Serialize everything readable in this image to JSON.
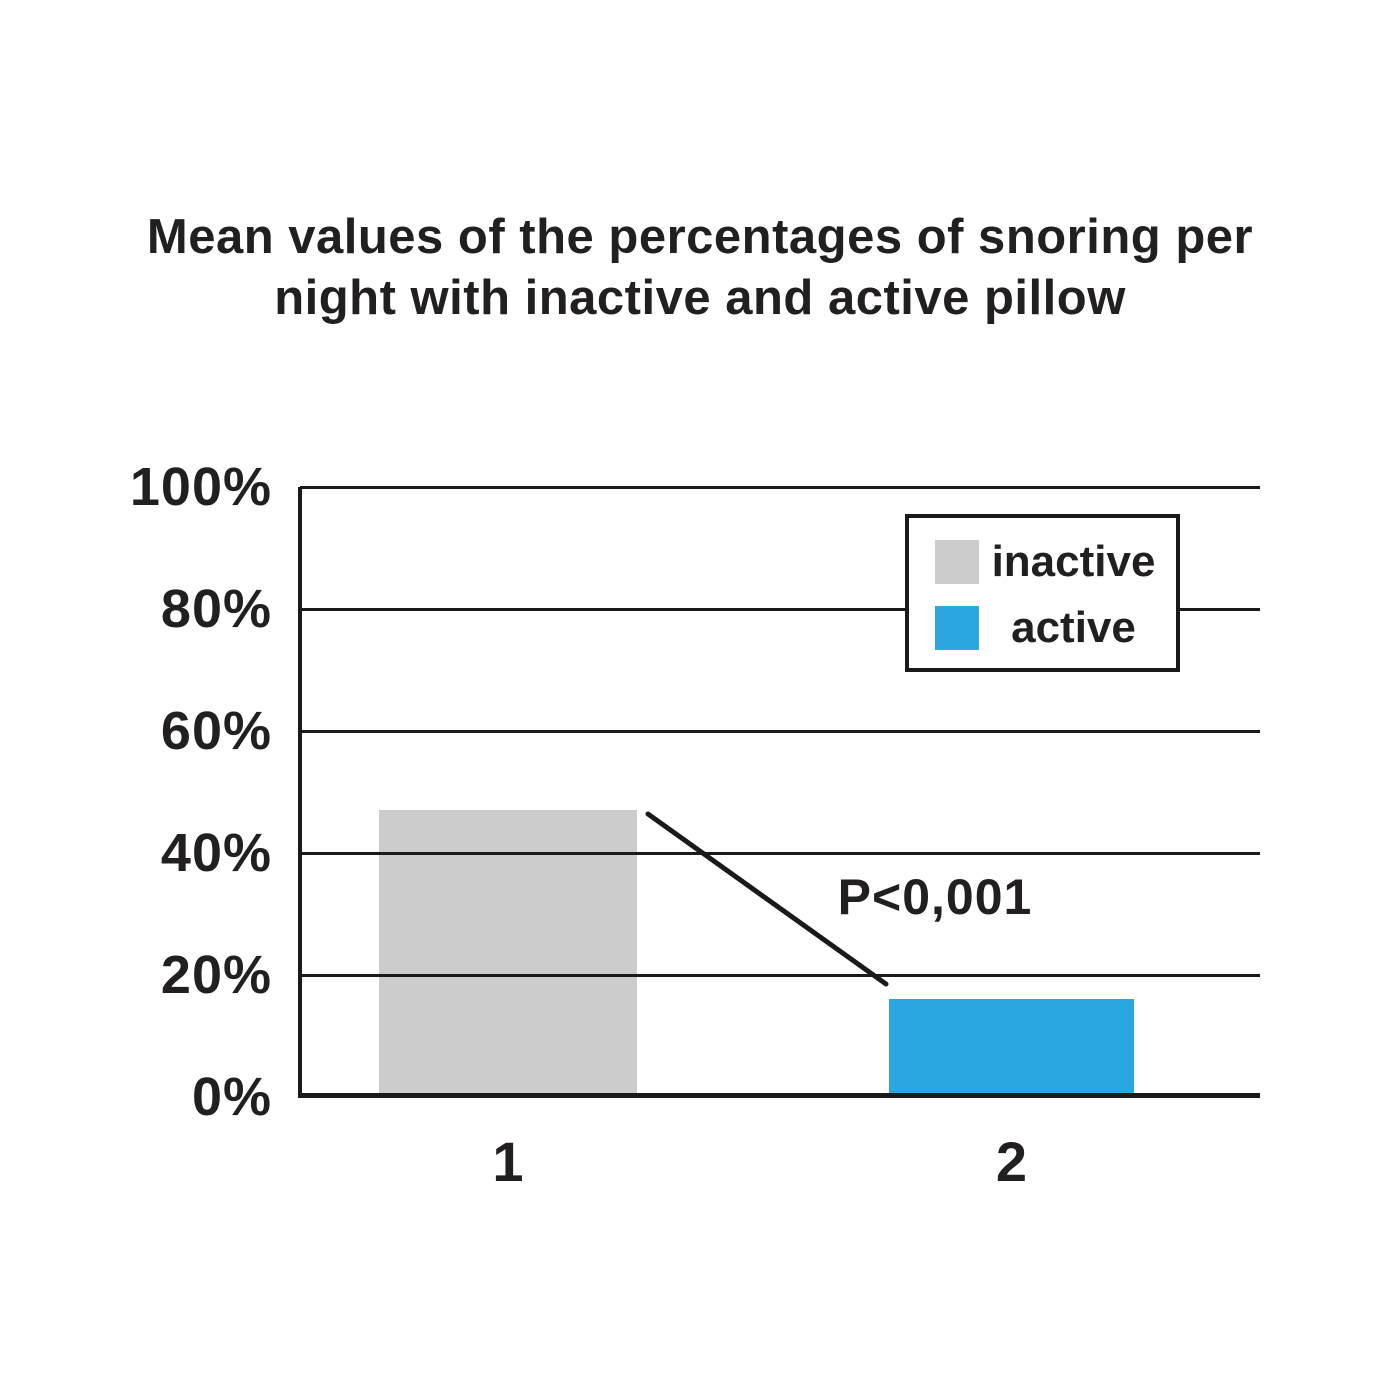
{
  "title": {
    "lines": [
      "Mean values of the percentages of snoring per",
      "night with inactive and active pillow"
    ]
  },
  "chart_data": {
    "type": "bar",
    "title": "Mean values of the percentages of snoring per night with inactive and active pillow",
    "categories": [
      "1",
      "2"
    ],
    "values": [
      47,
      16
    ],
    "bar_conditions": [
      "inactive",
      "active"
    ],
    "colors": [
      "#cccccc",
      "#2ba7e0"
    ],
    "xlabel": "",
    "ylabel": "",
    "ylim": [
      0,
      100
    ],
    "y_tick_labels": [
      "100%",
      "80%",
      "60%",
      "40%",
      "20%",
      "0%"
    ],
    "grid": true,
    "gridline_color": "#1a1a1a",
    "legend": {
      "position": "top-right",
      "entries": [
        {
          "label": "inactive",
          "color": "#cccccc"
        },
        {
          "label": "active",
          "color": "#2ba7e0"
        }
      ]
    },
    "annotation": "P<0,001"
  }
}
